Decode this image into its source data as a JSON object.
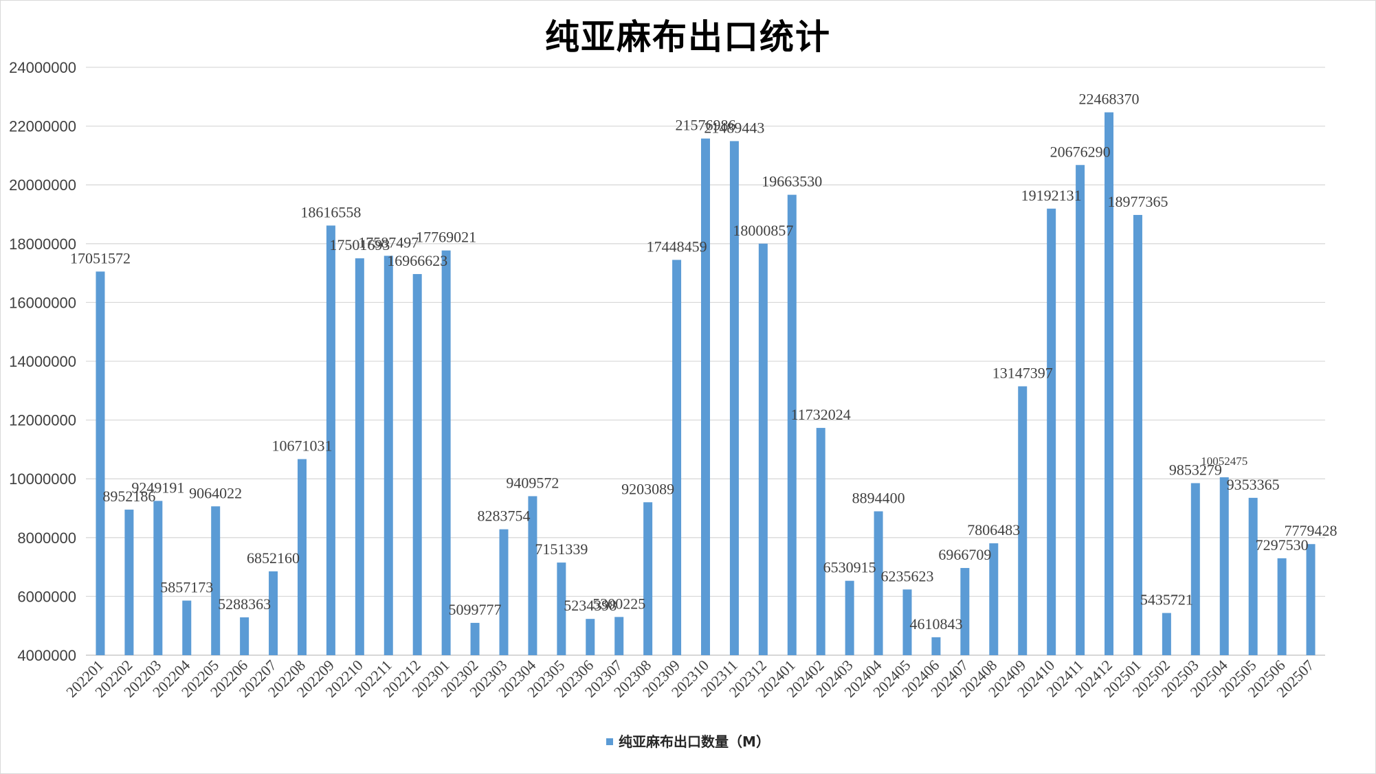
{
  "chart_data": {
    "type": "bar",
    "title": "纯亚麻布出口统计",
    "xlabel": "",
    "ylabel": "",
    "ylim": [
      4000000,
      24000000
    ],
    "ytick_step": 2000000,
    "yticks": [
      "4000000",
      "6000000",
      "8000000",
      "10000000",
      "12000000",
      "14000000",
      "16000000",
      "18000000",
      "20000000",
      "22000000",
      "24000000"
    ],
    "grid": true,
    "legend_position": "bottom",
    "bar_color": "#5b9bd5",
    "categories": [
      "202201",
      "202202",
      "202203",
      "202204",
      "202205",
      "202206",
      "202207",
      "202208",
      "202209",
      "202210",
      "202211",
      "202212",
      "202301",
      "202302",
      "202303",
      "202304",
      "202305",
      "202306",
      "202307",
      "202308",
      "202309",
      "202310",
      "202311",
      "202312",
      "202401",
      "202402",
      "202403",
      "202404",
      "202405",
      "202406",
      "202407",
      "202408",
      "202409",
      "202410",
      "202411",
      "202412",
      "202501",
      "202502",
      "202503",
      "202504",
      "202505",
      "202506",
      "202507"
    ],
    "series": [
      {
        "name": "纯亚麻布出口数量（M）",
        "values": [
          17051572,
          8952186,
          9249191,
          5857173,
          9064022,
          5288363,
          6852160,
          10671031,
          18616558,
          17501693,
          17587497,
          16966623,
          17769021,
          5099777,
          8283754,
          9409572,
          7151339,
          5234398,
          5300225,
          9203089,
          17448459,
          21576986,
          21489443,
          18000857,
          19663530,
          11732024,
          6530915,
          8894400,
          6235623,
          4610843,
          6966709,
          7806483,
          13147397,
          19192131,
          20676290,
          22468370,
          18977365,
          5435721,
          9853279,
          10052475,
          9353365,
          7297530,
          7779428
        ]
      }
    ]
  }
}
